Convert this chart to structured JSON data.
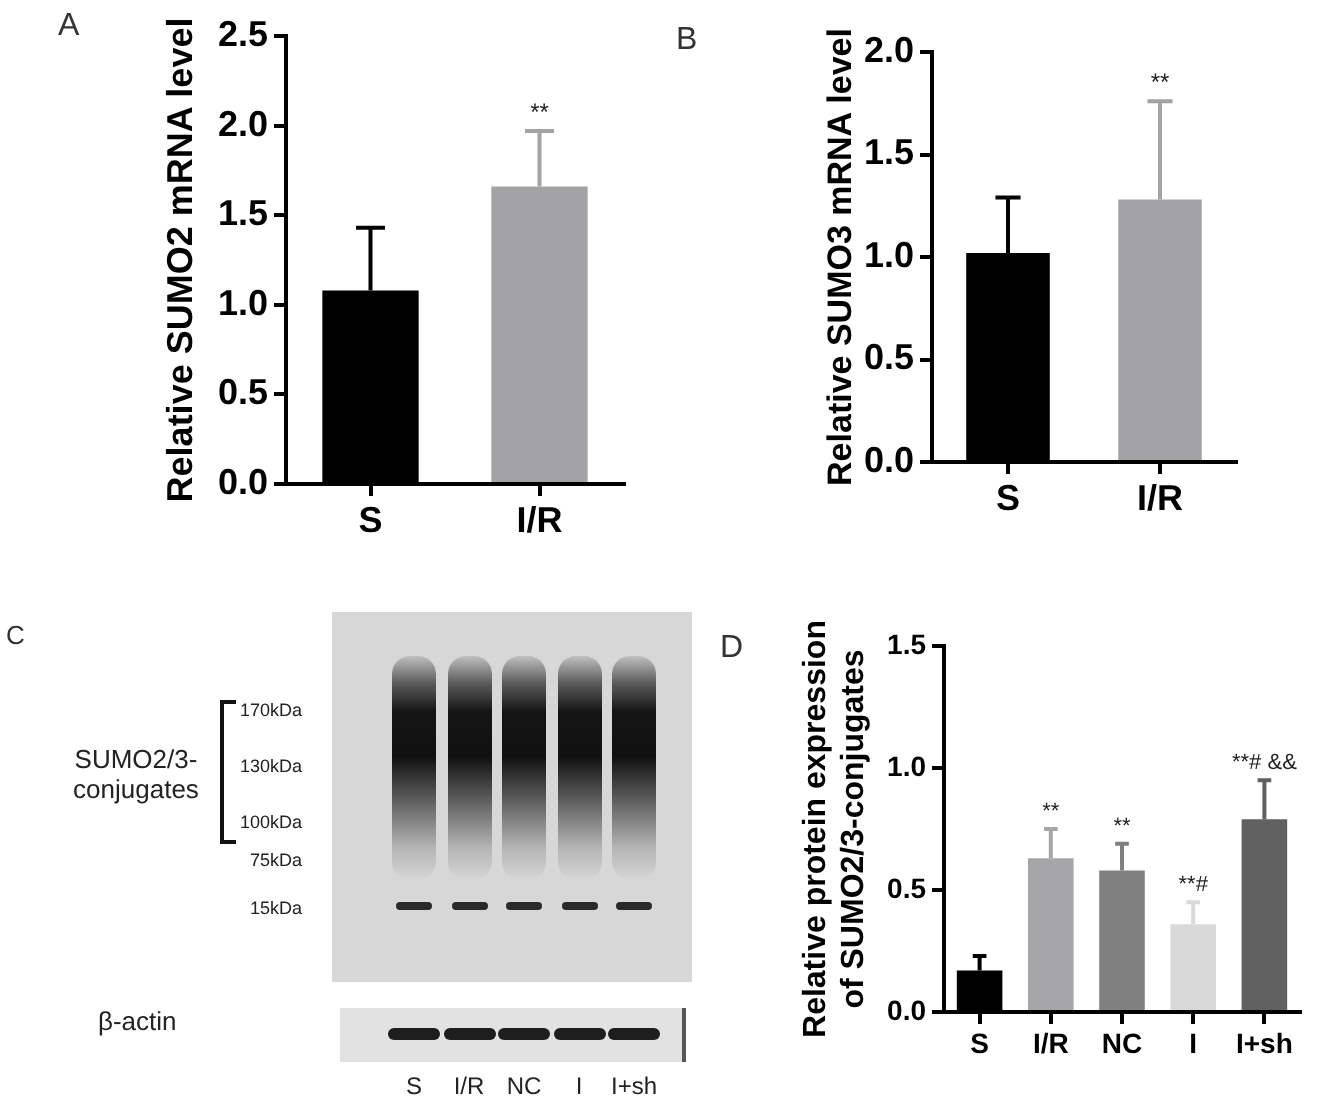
{
  "chart_data": [
    {
      "type": "bar",
      "title": "A",
      "ylabel": "Relative SUMO2 mRNA level",
      "categories": [
        "S",
        "I/R"
      ],
      "values": [
        1.08,
        1.66
      ],
      "colors": [
        "#000000",
        "#a3a3a6"
      ],
      "errors": [
        [
          1.08,
          1.43
        ],
        [
          1.66,
          1.97
        ]
      ],
      "ylim": [
        0,
        2.5
      ],
      "yticks": [
        {
          "value": 0,
          "label": "0.0"
        },
        0.5,
        {
          "value": 1,
          "label": "1.0"
        },
        1.5,
        {
          "value": 2,
          "label": "2.0"
        },
        2.5
      ],
      "annotations": [
        {
          "text": "**",
          "x": "I/R",
          "y": 1.97
        }
      ]
    },
    {
      "type": "bar",
      "title": "B",
      "ylabel": "Relative SUMO3 mRNA level",
      "categories": [
        "S",
        "I/R"
      ],
      "values": [
        1.02,
        1.28
      ],
      "colors": [
        "#000000",
        "#a3a3a6"
      ],
      "errors": [
        [
          1.02,
          1.29
        ],
        [
          1.28,
          1.76
        ]
      ],
      "ylim": [
        0,
        2
      ],
      "yticks": [
        {
          "value": 0,
          "label": "0.0"
        },
        0.5,
        {
          "value": 1,
          "label": "1.0"
        },
        1.5,
        {
          "value": 2,
          "label": "2.0"
        }
      ],
      "annotations": [
        {
          "text": "**",
          "x": "I/R",
          "y": 1.76
        }
      ]
    },
    {
      "type": "other",
      "title": "C",
      "categories": [
        "S",
        "I/R",
        "NC",
        "I",
        "I+sh"
      ],
      "annotations": [
        "SUMO2/3-conjugates",
        "170kDa",
        "130kDa",
        "100kDa",
        "75kDa",
        "15kDa",
        "β-actin"
      ]
    },
    {
      "type": "bar",
      "title": "D",
      "ylabel": "Relative protein expression\nof SUMO2/3-conjugates",
      "categories": [
        "S",
        "I/R",
        "NC",
        "I",
        "I+sh"
      ],
      "values": [
        0.17,
        0.63,
        0.58,
        0.36,
        0.79
      ],
      "colors": [
        "#000000",
        "#a6a6a8",
        "#808080",
        "#d9d9d9",
        "#606060"
      ],
      "errors": [
        [
          0.17,
          0.23
        ],
        [
          0.63,
          0.75
        ],
        [
          0.58,
          0.69
        ],
        [
          0.36,
          0.45
        ],
        [
          0.79,
          0.95
        ]
      ],
      "ylim": [
        0,
        1.5
      ],
      "yticks": [
        {
          "value": 0,
          "label": "0.0"
        },
        0.5,
        {
          "value": 1,
          "label": "1.0"
        },
        1.5
      ],
      "annotations": [
        {
          "text": "**",
          "x": "I/R",
          "y": 0.75
        },
        {
          "text": "**",
          "x": "NC",
          "y": 0.69
        },
        {
          "text": "**#",
          "x": "I",
          "y": 0.45
        },
        {
          "text": "**# &&",
          "x": "I+sh",
          "y": 0.95
        }
      ]
    }
  ]
}
